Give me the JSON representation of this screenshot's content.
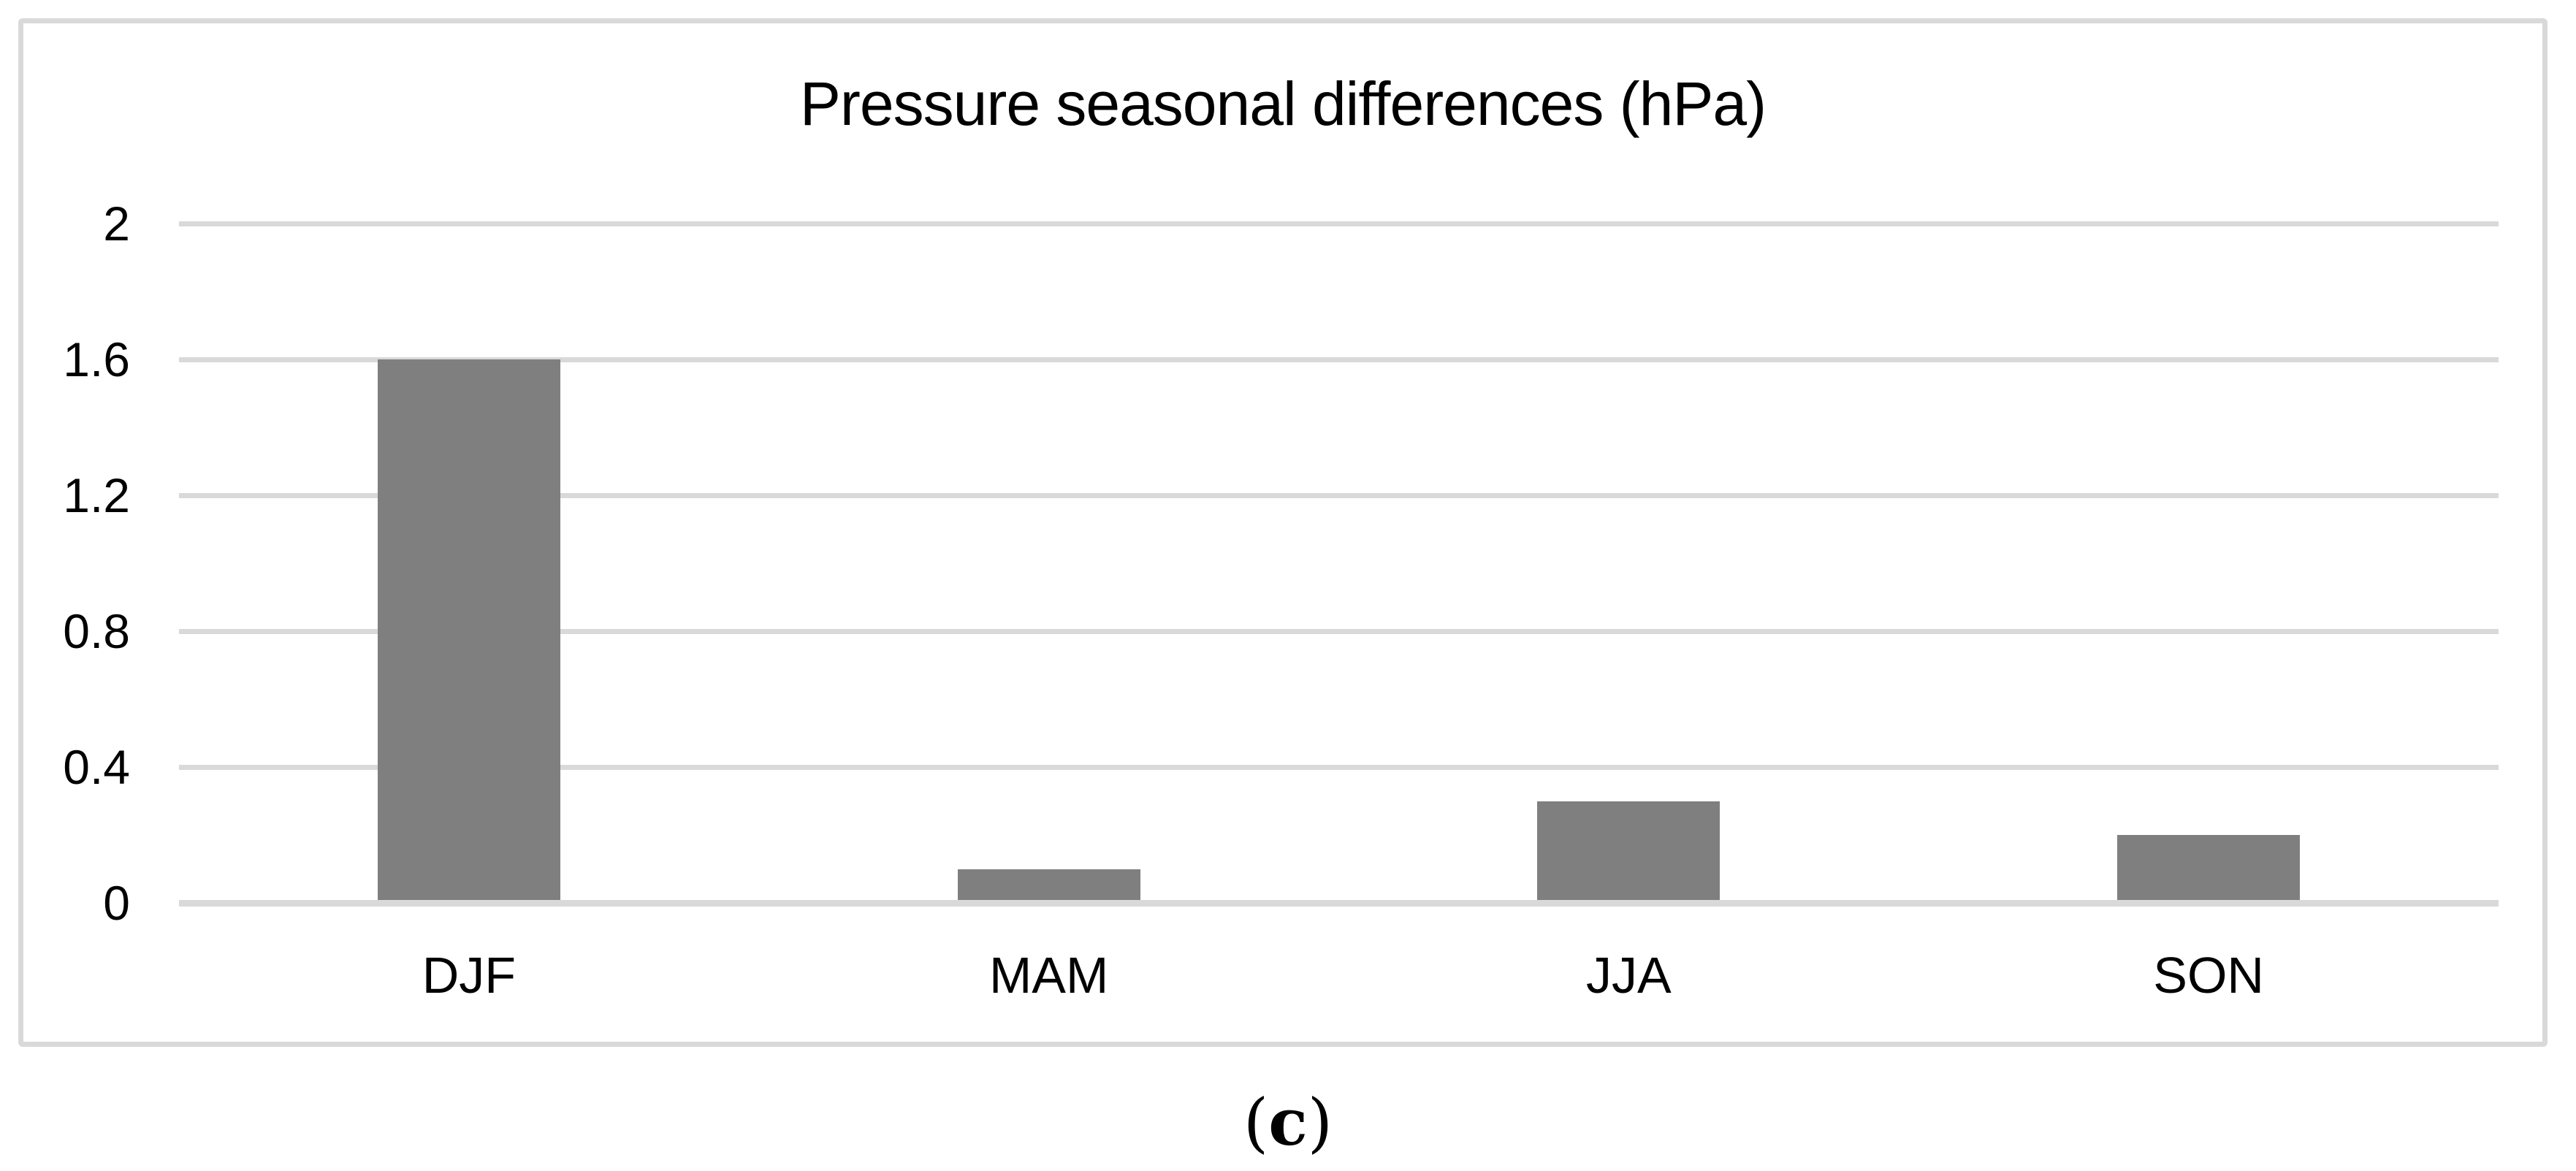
{
  "figure": {
    "caption_open": "(",
    "caption_letter": "c",
    "caption_close": ")"
  },
  "chart_data": {
    "type": "bar",
    "title": "Pressure seasonal differences (hPa)",
    "categories": [
      "DJF",
      "MAM",
      "JJA",
      "SON"
    ],
    "values": [
      1.6,
      0.1,
      0.3,
      0.2
    ],
    "xlabel": "",
    "ylabel": "",
    "unit": "hPa",
    "ylim": [
      0,
      2
    ],
    "yticks": [
      0,
      0.4,
      0.8,
      1.2,
      1.6,
      2
    ],
    "grid": true,
    "legend": false,
    "bar_color": "#7F7F7F",
    "gridline_color": "#D9D9D9",
    "frame_color": "#D9D9D9",
    "text_color": "#000000"
  }
}
